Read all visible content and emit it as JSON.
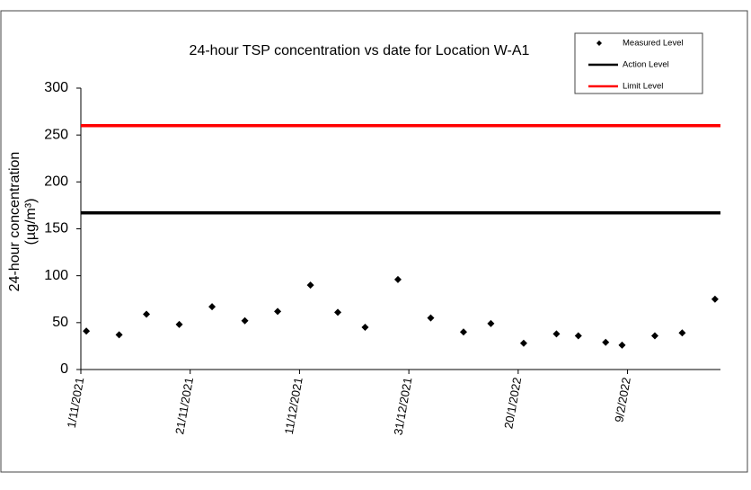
{
  "chart_data": {
    "type": "scatter",
    "title": "24-hour TSP concentration vs date for Location W-A1",
    "ylabel_lines": [
      "24-hour concentration",
      "(µg/m³)"
    ],
    "xlim": [
      "2021-11-01",
      "2022-02-26"
    ],
    "xticks": [
      {
        "value": "2021-11-01",
        "label": "1/11/2021"
      },
      {
        "value": "2021-11-21",
        "label": "21/11/2021"
      },
      {
        "value": "2021-12-11",
        "label": "11/12/2021"
      },
      {
        "value": "2021-12-31",
        "label": "31/12/2021"
      },
      {
        "value": "2022-01-20",
        "label": "20/1/2022"
      },
      {
        "value": "2022-02-09",
        "label": "9/2/2022"
      }
    ],
    "ylim": [
      0,
      300
    ],
    "yticks": [
      0,
      50,
      100,
      150,
      200,
      250,
      300
    ],
    "series": [
      {
        "name": "Measured Level",
        "color": "#000000",
        "x": [
          "2021-11-02",
          "2021-11-08",
          "2021-11-13",
          "2021-11-19",
          "2021-11-25",
          "2021-12-01",
          "2021-12-07",
          "2021-12-13",
          "2021-12-18",
          "2021-12-23",
          "2021-12-29",
          "2022-01-04",
          "2022-01-10",
          "2022-01-15",
          "2022-01-21",
          "2022-01-27",
          "2022-01-31",
          "2022-02-05",
          "2022-02-08",
          "2022-02-14",
          "2022-02-19",
          "2022-02-25"
        ],
        "values": [
          41,
          37,
          59,
          48,
          67,
          52,
          62,
          90,
          61,
          45,
          96,
          55,
          40,
          49,
          28,
          38,
          36,
          29,
          26,
          36,
          39,
          75
        ]
      }
    ],
    "reference_lines": [
      {
        "name": "Action Level",
        "color": "#000000",
        "value": 167
      },
      {
        "name": "Limit Level",
        "color": "#ff0000",
        "value": 260
      }
    ],
    "legend": "top-right"
  }
}
